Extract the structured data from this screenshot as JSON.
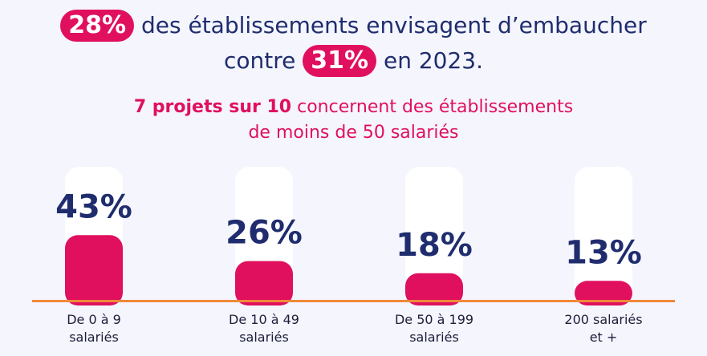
{
  "headline": {
    "pct1": "28%",
    "text1": "des établissements envisagent d’embaucher",
    "text2a": "contre",
    "pct2": "31%",
    "text2b": "en 2023."
  },
  "subtitle": {
    "bold": "7 projets sur 10",
    "rest1": "concernent des établissements",
    "line2": "de moins de 50 salariés"
  },
  "colors": {
    "accent": "#e0105f",
    "navy": "#1f2d6e",
    "baseline": "#f0883a",
    "track": "#ffffff",
    "background": "#f5f5fd"
  },
  "chart_data": {
    "type": "bar",
    "categories": [
      [
        "De 0 à 9",
        "salariés"
      ],
      [
        "De 10 à 49",
        "salariés"
      ],
      [
        "De 50 à 199",
        "salariés"
      ],
      [
        "200 salariés",
        "et +"
      ]
    ],
    "values": [
      43,
      26,
      18,
      13
    ],
    "value_labels": [
      "43%",
      "26%",
      "18%",
      "13%"
    ],
    "ylim": [
      0,
      100
    ]
  }
}
